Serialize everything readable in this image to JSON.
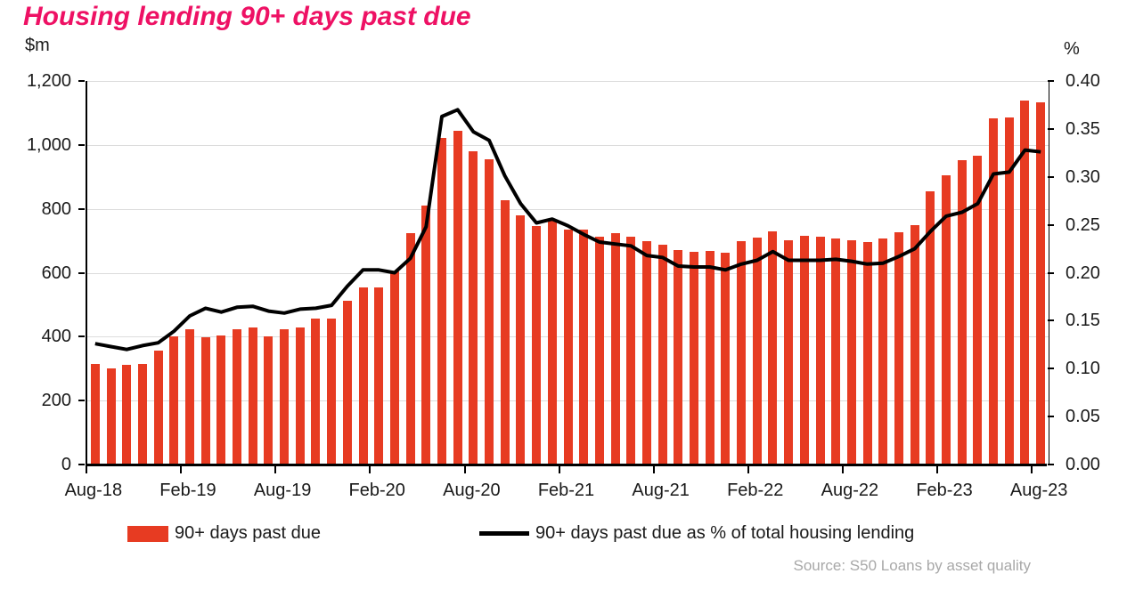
{
  "title": "Housing lending 90+ days past due",
  "title_color": "#ee1164",
  "left_axis": {
    "unit": "$m",
    "min": 0,
    "max": 1200,
    "step": 200,
    "tick_labels": [
      "1,200",
      "1,000",
      "800",
      "600",
      "400",
      "200",
      "0"
    ]
  },
  "right_axis": {
    "unit": "%",
    "min": 0.0,
    "max": 0.4,
    "step": 0.05,
    "tick_labels": [
      "0.40",
      "0.35",
      "0.30",
      "0.25",
      "0.20",
      "0.15",
      "0.10",
      "0.05",
      "0.00"
    ]
  },
  "x_axis": {
    "tick_labels": [
      "Aug-18",
      "Feb-19",
      "Aug-19",
      "Feb-20",
      "Aug-20",
      "Feb-21",
      "Aug-21",
      "Feb-22",
      "Aug-22",
      "Feb-23",
      "Aug-23"
    ],
    "tick_every_n_categories": 6
  },
  "legend": [
    {
      "label": "90+ days past due",
      "type": "bar",
      "color": "#e73b22"
    },
    {
      "label": "90+ days past due as % of total housing lending",
      "type": "line",
      "color": "#000000"
    }
  ],
  "source": "Source:  S50 Loans by asset quality",
  "colors": {
    "bar": "#e73b22",
    "line": "#000000",
    "gridline": "#dcdcdc",
    "axis": "#000000",
    "source_text": "#a8a8a8"
  },
  "chart_data": {
    "type": "combo",
    "grid": true,
    "legend_position": "bottom",
    "categories": [
      "Aug-18",
      "Sep-18",
      "Oct-18",
      "Nov-18",
      "Dec-18",
      "Jan-19",
      "Feb-19",
      "Mar-19",
      "Apr-19",
      "May-19",
      "Jun-19",
      "Jul-19",
      "Aug-19",
      "Sep-19",
      "Oct-19",
      "Nov-19",
      "Dec-19",
      "Jan-20",
      "Feb-20",
      "Mar-20",
      "Apr-20",
      "May-20",
      "Jun-20",
      "Jul-20",
      "Aug-20",
      "Sep-20",
      "Oct-20",
      "Nov-20",
      "Dec-20",
      "Jan-21",
      "Feb-21",
      "Mar-21",
      "Apr-21",
      "May-21",
      "Jun-21",
      "Jul-21",
      "Aug-21",
      "Sep-21",
      "Oct-21",
      "Nov-21",
      "Dec-21",
      "Jan-22",
      "Feb-22",
      "Mar-22",
      "Apr-22",
      "May-22",
      "Jun-22",
      "Jul-22",
      "Aug-22",
      "Sep-22",
      "Oct-22",
      "Nov-22",
      "Dec-22",
      "Jan-23",
      "Feb-23",
      "Mar-23",
      "Apr-23",
      "May-23",
      "Jun-23",
      "Jul-23",
      "Aug-23"
    ],
    "series": [
      {
        "name": "90+ days past due",
        "type": "bar",
        "axis": "left",
        "unit": "$m",
        "ylim": [
          0,
          1200
        ],
        "color": "#e73b22",
        "values": [
          315,
          300,
          312,
          316,
          357,
          401,
          422,
          399,
          404,
          424,
          430,
          402,
          424,
          430,
          458,
          457,
          512,
          554,
          553,
          604,
          723,
          809,
          1023,
          1043,
          980,
          954,
          827,
          780,
          745,
          767,
          734,
          735,
          714,
          723,
          713,
          698,
          688,
          672,
          665,
          668,
          663,
          700,
          711,
          730,
          703,
          715,
          712,
          708,
          702,
          695,
          706,
          727,
          748,
          855,
          906,
          952,
          966,
          1082,
          1086,
          1138,
          1133
        ]
      },
      {
        "name": "90+ days past due as % of total housing lending",
        "type": "line",
        "axis": "right",
        "unit": "%",
        "ylim": [
          0.0,
          0.4
        ],
        "color": "#000000",
        "values": [
          0.126,
          0.123,
          0.12,
          0.124,
          0.127,
          0.139,
          0.155,
          0.163,
          0.159,
          0.164,
          0.165,
          0.16,
          0.158,
          0.162,
          0.163,
          0.166,
          0.186,
          0.203,
          0.203,
          0.2,
          0.215,
          0.248,
          0.363,
          0.37,
          0.347,
          0.338,
          0.301,
          0.272,
          0.252,
          0.256,
          0.249,
          0.24,
          0.232,
          0.23,
          0.228,
          0.218,
          0.216,
          0.207,
          0.206,
          0.206,
          0.203,
          0.209,
          0.213,
          0.222,
          0.213,
          0.213,
          0.213,
          0.214,
          0.212,
          0.209,
          0.21,
          0.217,
          0.225,
          0.243,
          0.259,
          0.263,
          0.272,
          0.303,
          0.305,
          0.328,
          0.326
        ]
      }
    ]
  }
}
